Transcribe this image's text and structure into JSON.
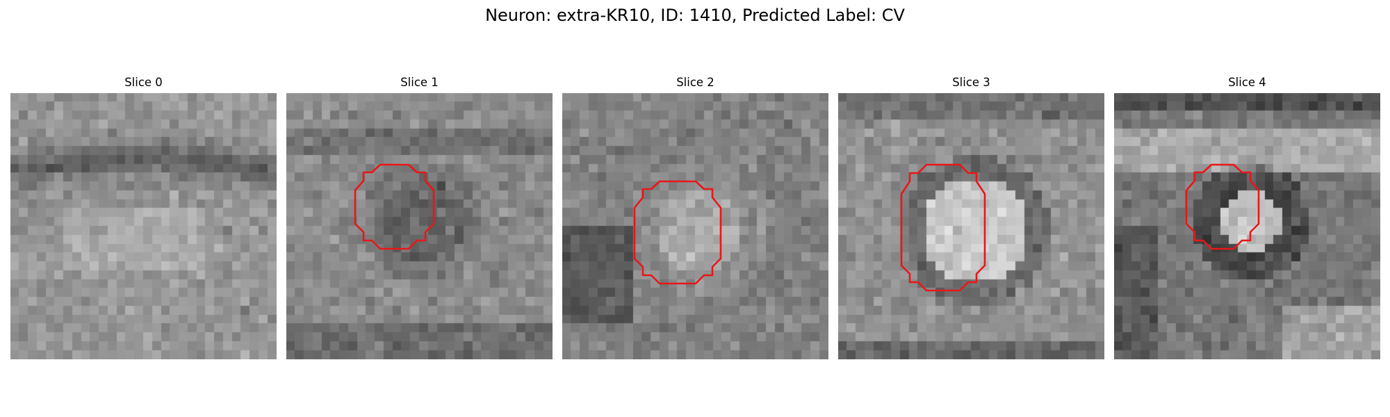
{
  "figure": {
    "title": "Neuron: extra-KR10, ID: 1410, Predicted Label: CV"
  },
  "colors": {
    "contour": "#e8171a",
    "background": "#ffffff"
  },
  "panels": [
    {
      "title": "Slice 0",
      "has_contour": false
    },
    {
      "title": "Slice 1",
      "has_contour": true
    },
    {
      "title": "Slice 2",
      "has_contour": true
    },
    {
      "title": "Slice 3",
      "has_contour": true
    },
    {
      "title": "Slice 4",
      "has_contour": true
    }
  ]
}
